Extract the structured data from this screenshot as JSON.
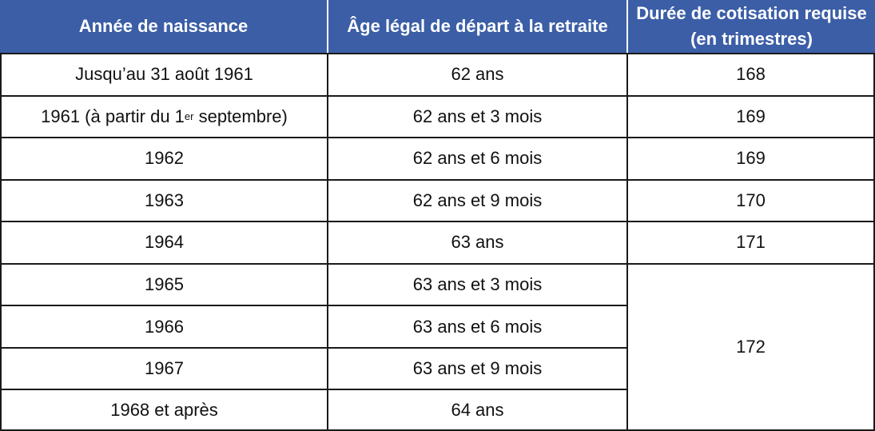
{
  "table": {
    "headers": [
      "Année de naissance",
      "Âge légal de départ à la retraite",
      "Durée de cotisation requise (en trimestres)"
    ],
    "rows": [
      {
        "birth": "Jusqu’au 31 août 1961",
        "age": "62 ans",
        "quarters": "168"
      },
      {
        "birth_prefix": "1961 (à partir du 1",
        "birth_sup": "er",
        "birth_suffix": " septembre)",
        "age": "62 ans et 3 mois",
        "quarters": "169"
      },
      {
        "birth": "1962",
        "age": "62 ans et 6 mois",
        "quarters": "169"
      },
      {
        "birth": "1963",
        "age": "62 ans et 9 mois",
        "quarters": "170"
      },
      {
        "birth": "1964",
        "age": "63 ans",
        "quarters": "171"
      },
      {
        "birth": "1965",
        "age": "63 ans et 3 mois"
      },
      {
        "birth": "1966",
        "age": "63 ans et 6 mois"
      },
      {
        "birth": "1967",
        "age": "63 ans et 9 mois"
      },
      {
        "birth": "1968 et après",
        "age": "64 ans"
      }
    ],
    "merged_quarters": "172"
  },
  "colors": {
    "header_bg": "#3b5ea6",
    "header_text": "#ffffff",
    "border": "#1a1a1a"
  }
}
